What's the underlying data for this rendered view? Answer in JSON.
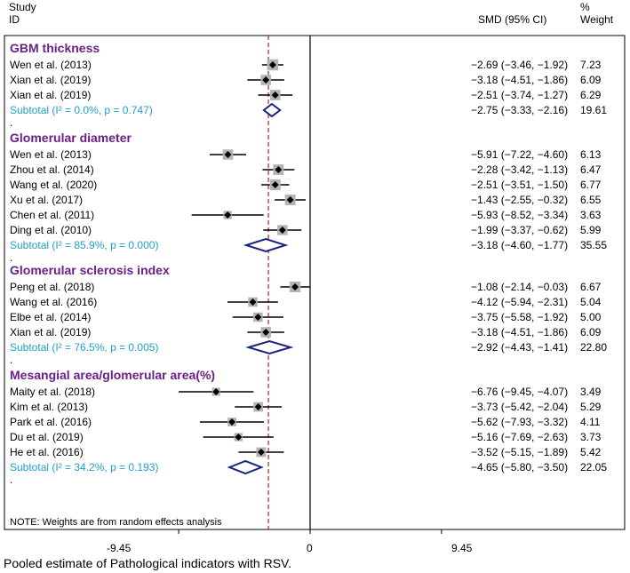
{
  "header": {
    "study_label": "Study",
    "id_label": "ID",
    "smd_label": "SMD (95% CI)",
    "pct_label": "%",
    "weight_label": "Weight"
  },
  "note": "NOTE: Weights are from random effects analysis",
  "caption": "Pooled estimate of Pathological indicators with RSV.",
  "chart_data": {
    "type": "forest",
    "xlim": [
      -12,
      6
    ],
    "xticks": [
      "-9.45",
      "0",
      "9.45"
    ],
    "reference_line": 0,
    "pooled_line": -3.0,
    "colors": {
      "group": "#6a1f8a",
      "subtotal": "#1fa0c8",
      "diamond": "#1a237e",
      "pooled_line": "#b22222"
    },
    "groups": [
      {
        "name": "GBM thickness",
        "studies": [
          {
            "label": "Wen et al. (2013)",
            "est": -2.69,
            "lo": -3.46,
            "hi": -1.92,
            "ci": "−2.69 (−3.46, −1.92)",
            "weight": "7.23"
          },
          {
            "label": "Xian et al. (2019)",
            "est": -3.18,
            "lo": -4.51,
            "hi": -1.86,
            "ci": "−3.18 (−4.51, −1.86)",
            "weight": "6.09"
          },
          {
            "label": "Xian et al. (2019)",
            "est": -2.51,
            "lo": -3.74,
            "hi": -1.27,
            "ci": "−2.51 (−3.74, −1.27)",
            "weight": "6.29"
          }
        ],
        "subtotal": {
          "label": "Subtotal  (I² = 0.0%, p = 0.747)",
          "est": -2.75,
          "lo": -3.33,
          "hi": -2.16,
          "ci": "−2.75 (−3.33, −2.16)",
          "weight": "19.61"
        }
      },
      {
        "name": "Glomerular diameter",
        "studies": [
          {
            "label": "Wen et al. (2013)",
            "est": -5.91,
            "lo": -7.22,
            "hi": -4.6,
            "ci": "−5.91 (−7.22, −4.60)",
            "weight": "6.13"
          },
          {
            "label": "Zhou et al. (2014)",
            "est": -2.28,
            "lo": -3.42,
            "hi": -1.13,
            "ci": "−2.28 (−3.42, −1.13)",
            "weight": "6.47"
          },
          {
            "label": "Wang et al. (2020)",
            "est": -2.51,
            "lo": -3.51,
            "hi": -1.5,
            "ci": "−2.51 (−3.51, −1.50)",
            "weight": "6.77"
          },
          {
            "label": "Xu et al. (2017)",
            "est": -1.43,
            "lo": -2.55,
            "hi": -0.32,
            "ci": "−1.43 (−2.55, −0.32)",
            "weight": "6.55"
          },
          {
            "label": "Chen et al. (2011)",
            "est": -5.93,
            "lo": -8.52,
            "hi": -3.34,
            "ci": "−5.93 (−8.52, −3.34)",
            "weight": "3.63"
          },
          {
            "label": "Ding et al. (2010)",
            "est": -1.99,
            "lo": -3.37,
            "hi": -0.62,
            "ci": "−1.99 (−3.37, −0.62)",
            "weight": "5.99"
          }
        ],
        "subtotal": {
          "label": "Subtotal  (I² = 85.9%, p = 0.000)",
          "est": -3.18,
          "lo": -4.6,
          "hi": -1.77,
          "ci": "−3.18 (−4.60, −1.77)",
          "weight": "35.55"
        }
      },
      {
        "name": "Glomerular sclerosis index",
        "studies": [
          {
            "label": "Peng  et al. (2018)",
            "est": -1.08,
            "lo": -2.14,
            "hi": -0.03,
            "ci": "−1.08 (−2.14, −0.03)",
            "weight": "6.67"
          },
          {
            "label": "Wang et al. (2016)",
            "est": -4.12,
            "lo": -5.94,
            "hi": -2.31,
            "ci": "−4.12 (−5.94, −2.31)",
            "weight": "5.04"
          },
          {
            "label": "Elbe  et al. (2014)",
            "est": -3.75,
            "lo": -5.58,
            "hi": -1.92,
            "ci": "−3.75 (−5.58, −1.92)",
            "weight": "5.00"
          },
          {
            "label": "Xian et al. (2019)",
            "est": -3.18,
            "lo": -4.51,
            "hi": -1.86,
            "ci": "−3.18 (−4.51, −1.86)",
            "weight": "6.09"
          }
        ],
        "subtotal": {
          "label": "Subtotal  (I² = 76.5%, p = 0.005)",
          "est": -2.92,
          "lo": -4.43,
          "hi": -1.41,
          "ci": "−2.92 (−4.43, −1.41)",
          "weight": "22.80"
        }
      },
      {
        "name": "Mesangial area/glomerular area(%)",
        "studies": [
          {
            "label": "Maity et al. (2018)",
            "est": -6.76,
            "lo": -9.45,
            "hi": -4.07,
            "ci": "−6.76 (−9.45, −4.07)",
            "weight": "3.49"
          },
          {
            "label": "Kim et al. (2013)",
            "est": -3.73,
            "lo": -5.42,
            "hi": -2.04,
            "ci": "−3.73 (−5.42, −2.04)",
            "weight": "5.29"
          },
          {
            "label": "Park et al. (2016)",
            "est": -5.62,
            "lo": -7.93,
            "hi": -3.32,
            "ci": "−5.62 (−7.93, −3.32)",
            "weight": "4.11"
          },
          {
            "label": "Du et al. (2019)",
            "est": -5.16,
            "lo": -7.69,
            "hi": -2.63,
            "ci": "−5.16 (−7.69, −2.63)",
            "weight": "3.73"
          },
          {
            "label": "He et al. (2016)",
            "est": -3.52,
            "lo": -5.15,
            "hi": -1.89,
            "ci": "−3.52 (−5.15, −1.89)",
            "weight": "5.42"
          }
        ],
        "subtotal": {
          "label": "Subtotal  (I² = 34.2%, p = 0.193)",
          "est": -4.65,
          "lo": -5.8,
          "hi": -3.5,
          "ci": "−4.65 (−5.80, −3.50)",
          "weight": "22.05"
        }
      }
    ]
  }
}
